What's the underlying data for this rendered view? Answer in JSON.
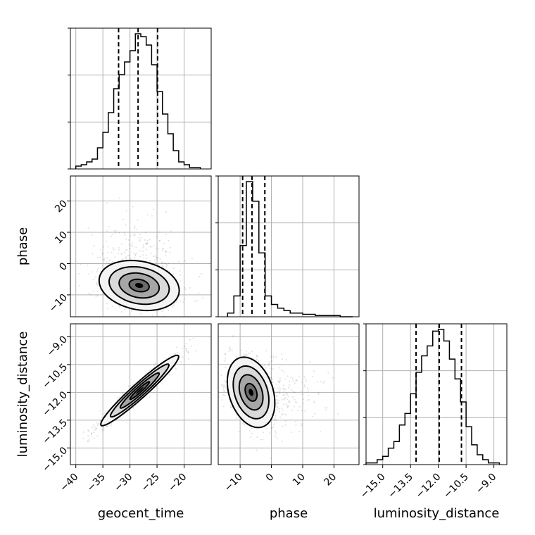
{
  "chart_data": {
    "type": "corner",
    "parameters": [
      "geocent_time",
      "phase",
      "luminosity_distance"
    ],
    "axis_labels": {
      "x": [
        "geocent_time",
        "phase",
        "luminosity_distance"
      ],
      "y": [
        "phase",
        "luminosity_distance"
      ]
    },
    "ranges": {
      "geocent_time": [
        -41,
        -15
      ],
      "phase": [
        -17,
        28
      ],
      "luminosity_distance": [
        -15.9,
        -8.3
      ]
    },
    "ticks": {
      "geocent_time": [
        -40,
        -35,
        -30,
        -25,
        -20
      ],
      "phase": [
        -10,
        0,
        10,
        20
      ],
      "luminosity_distance": [
        -15.0,
        -13.5,
        -12.0,
        -10.5,
        -9.0
      ]
    },
    "tick_labels": {
      "geocent_time": [
        "−40",
        "−35",
        "−30",
        "−25",
        "−20"
      ],
      "phase": [
        "−10",
        "0",
        "10",
        "20"
      ],
      "luminosity_distance": [
        "−15.0",
        "−13.5",
        "−12.0",
        "−10.5",
        "−9.0"
      ]
    },
    "quantiles": {
      "geocent_time": [
        -32.1,
        -28.5,
        -24.9
      ],
      "phase": [
        -9.2,
        -6.2,
        -2.1
      ],
      "luminosity_distance": [
        -13.2,
        -11.95,
        -10.75
      ]
    },
    "histograms": {
      "geocent_time": {
        "edges": [
          -40,
          -39,
          -38,
          -37,
          -36,
          -35,
          -34,
          -33,
          -32,
          -31,
          -30,
          -29,
          -28,
          -27,
          -26,
          -25,
          -24,
          -23,
          -22,
          -21,
          -20,
          -19,
          -18,
          -17
        ],
        "counts": [
          2,
          3,
          5,
          7,
          15,
          26,
          40,
          57,
          67,
          76,
          84,
          96,
          94,
          88,
          74,
          55,
          39,
          25,
          13,
          5,
          3,
          1,
          1
        ]
      },
      "phase": {
        "edges": [
          -14,
          -12,
          -10,
          -8,
          -6,
          -4,
          -2,
          0,
          2,
          4,
          6,
          8,
          10,
          12,
          14,
          16,
          18,
          20,
          22,
          24,
          26
        ],
        "counts": [
          3,
          17,
          58,
          110,
          94,
          52,
          17,
          10,
          7,
          5,
          3,
          3,
          2,
          2,
          1,
          1,
          1,
          1,
          0,
          0
        ]
      },
      "luminosity_distance": {
        "edges": [
          -15.9,
          -15.6,
          -15.3,
          -15.0,
          -14.7,
          -14.4,
          -14.1,
          -13.8,
          -13.5,
          -13.2,
          -12.9,
          -12.6,
          -12.3,
          -12.0,
          -11.7,
          -11.4,
          -11.1,
          -10.8,
          -10.5,
          -10.2,
          -9.9,
          -9.6,
          -9.3,
          -9.0,
          -8.7
        ],
        "counts": [
          1,
          1,
          3,
          5,
          10,
          14,
          24,
          31,
          43,
          56,
          66,
          72,
          81,
          82,
          75,
          64,
          52,
          38,
          23,
          12,
          6,
          3,
          1,
          1
        ]
      }
    },
    "joint_2d": [
      {
        "x": "geocent_time",
        "y": "phase",
        "center": [
          -28.3,
          -7.0
        ],
        "spread": [
          3.7,
          4.0
        ],
        "correlation": -0.2,
        "contour_levels_sigma": [
          0.5,
          1.0,
          1.5,
          2.0
        ]
      },
      {
        "x": "geocent_time",
        "y": "luminosity_distance",
        "center": [
          -28.2,
          -11.9
        ],
        "spread": [
          3.6,
          0.95
        ],
        "correlation": 0.96,
        "contour_levels_sigma": [
          0.5,
          1.0,
          1.5,
          2.0
        ]
      },
      {
        "x": "phase",
        "y": "luminosity_distance",
        "center": [
          -6.5,
          -12.0
        ],
        "spread": [
          3.8,
          0.95
        ],
        "correlation": -0.3,
        "contour_levels_sigma": [
          0.5,
          1.0,
          1.5,
          2.0
        ]
      }
    ],
    "grid": true,
    "legend": "none"
  }
}
